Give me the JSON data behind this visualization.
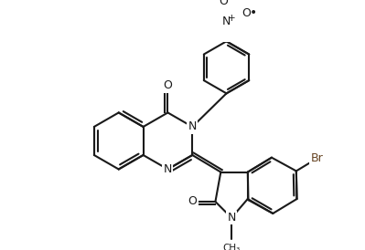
{
  "bg_color": "#ffffff",
  "bond_color": "#1a1a1a",
  "lw": 1.5,
  "figsize": [
    3.99,
    2.74
  ],
  "dpi": 100,
  "xlim": [
    -4.5,
    6.0
  ],
  "ylim": [
    -3.5,
    3.5
  ]
}
